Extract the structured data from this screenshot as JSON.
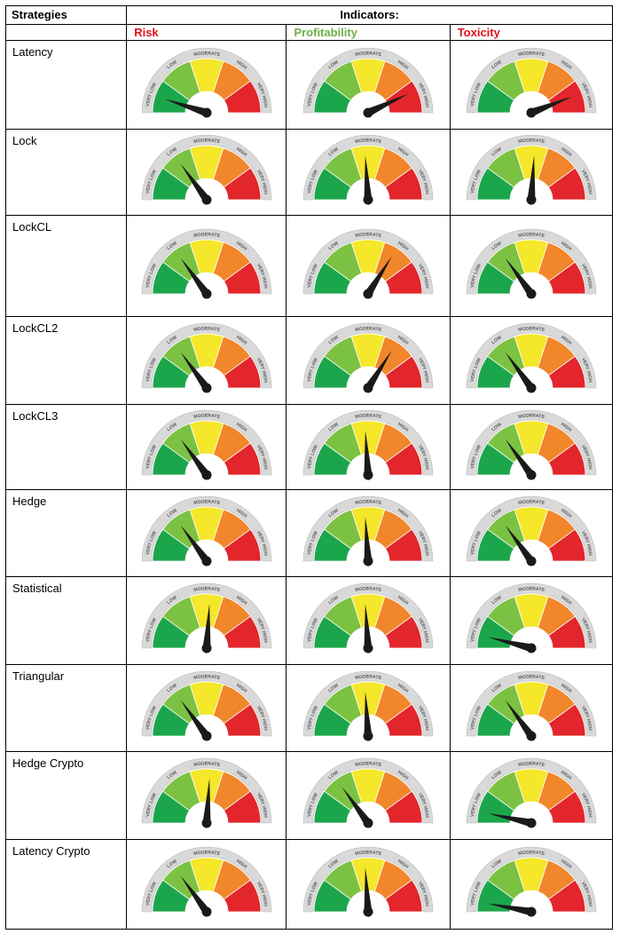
{
  "header": {
    "strategies_label": "Strategies",
    "indicators_label": "Indicators:",
    "columns": [
      "Risk",
      "Profitability",
      "Toxicity"
    ]
  },
  "colors": {
    "risk_header": "#e0121a",
    "profitability_header": "#70ad47",
    "toxicity_header": "#e0121a",
    "very_low": "#1ca64b",
    "low": "#7cc242",
    "moderate": "#f5e72a",
    "high": "#f2862a",
    "very_high": "#e2262b",
    "needle": "#1a1a1a"
  },
  "gauge_labels": [
    "VERY LOW",
    "LOW",
    "MODERATE",
    "HIGH",
    "VERY HIGH"
  ],
  "rows": [
    {
      "strategy": "Latency",
      "risk": 0.1,
      "profitability": 0.86,
      "toxicity": 0.88
    },
    {
      "strategy": "Lock",
      "risk": 0.3,
      "profitability": 0.48,
      "toxicity": 0.52
    },
    {
      "strategy": "LockCL",
      "risk": 0.3,
      "profitability": 0.68,
      "toxicity": 0.3
    },
    {
      "strategy": "LockCL2",
      "risk": 0.3,
      "profitability": 0.68,
      "toxicity": 0.3
    },
    {
      "strategy": "LockCL3",
      "risk": 0.3,
      "profitability": 0.48,
      "toxicity": 0.3
    },
    {
      "strategy": "Hedge",
      "risk": 0.3,
      "profitability": 0.48,
      "toxicity": 0.3
    },
    {
      "strategy": "Statistical",
      "risk": 0.52,
      "profitability": 0.48,
      "toxicity": 0.08
    },
    {
      "strategy": "Triangular",
      "risk": 0.3,
      "profitability": 0.48,
      "toxicity": 0.3
    },
    {
      "strategy": "Hedge Crypto",
      "risk": 0.52,
      "profitability": 0.3,
      "toxicity": 0.07
    },
    {
      "strategy": "Latency Crypto",
      "risk": 0.3,
      "profitability": 0.48,
      "toxicity": 0.06
    }
  ]
}
